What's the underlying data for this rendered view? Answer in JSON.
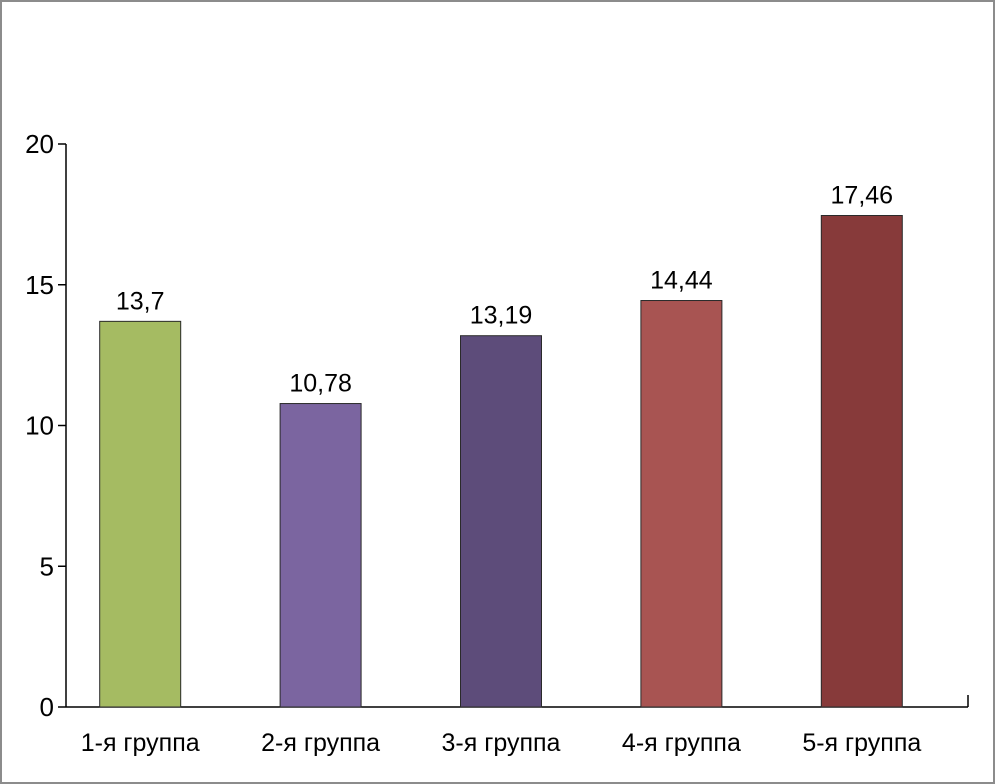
{
  "chart_data": {
    "type": "bar",
    "title": "",
    "xlabel": "",
    "ylabel": "",
    "categories": [
      "1-я группа",
      "2-я группа",
      "3-я группа",
      "4-я группа",
      "5-я группа"
    ],
    "values": [
      13.7,
      10.78,
      13.19,
      14.44,
      17.46
    ],
    "value_labels": [
      "13,7",
      "10,78",
      "13,19",
      "14,44",
      "17,46"
    ],
    "colors": [
      "#a5bb62",
      "#7b65a0",
      "#5d4c7a",
      "#a85452",
      "#873a3a"
    ],
    "ylim": [
      0,
      20
    ],
    "yticks": [
      0,
      5,
      10,
      15,
      20
    ],
    "ytick_labels": [
      "0",
      "5",
      "10",
      "15",
      "20"
    ],
    "grid": false,
    "legend": "none"
  }
}
